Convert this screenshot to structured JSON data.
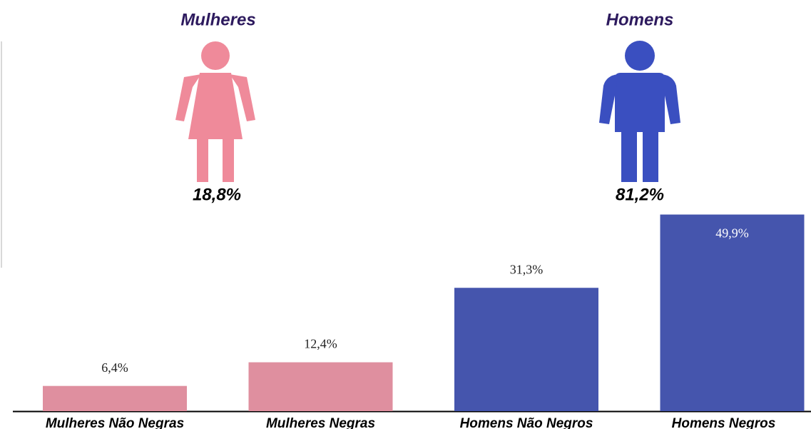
{
  "chart_data": {
    "type": "bar",
    "categories": [
      "Mulheres Não Negras",
      "Mulheres Negras",
      "Homens Não Negros",
      "Homens Negros"
    ],
    "values": [
      6.4,
      12.4,
      31.3,
      49.9
    ],
    "value_labels": [
      "6,4%",
      "12,4%",
      "31,3%",
      "49,9%"
    ],
    "colors": [
      "#df8f9f",
      "#df8f9f",
      "#4555ad",
      "#4555ad"
    ],
    "ylim": [
      0,
      50
    ],
    "group_titles": [
      "Mulheres",
      "Homens"
    ],
    "group_values": [
      18.8,
      81.2
    ],
    "group_value_labels": [
      "18,8%",
      "81,2%"
    ],
    "group_colors": [
      "#ef8a9a",
      "#3a4fc0"
    ]
  }
}
